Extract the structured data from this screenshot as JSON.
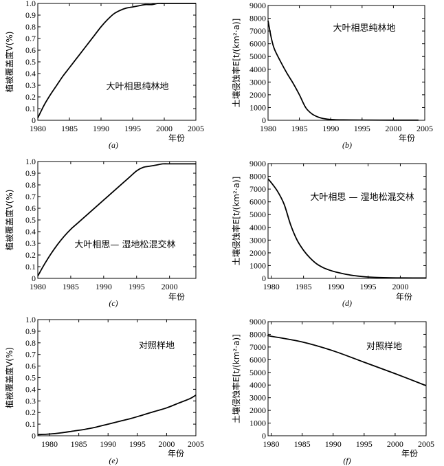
{
  "chart_data": [
    {
      "type": "line",
      "caption": "(a)",
      "annotation": "大叶相思纯林地",
      "ylabel": "植被覆盖度V(%)",
      "xlabel": "年份",
      "xlim": [
        1980,
        2005
      ],
      "ylim": [
        0,
        1
      ],
      "xticks": [
        "1980",
        "1985",
        "1990",
        "1995",
        "2000",
        "2005"
      ],
      "yticks": [
        "0",
        "0.1",
        "0.2",
        "0.3",
        "0.4",
        "0.5",
        "0.6",
        "0.7",
        "0.8",
        "0.9",
        "1.0"
      ],
      "series": [
        {
          "x": [
            1980,
            1981,
            1982,
            1983,
            1984,
            1985,
            1986,
            1987,
            1988,
            1989,
            1990,
            1991,
            1992,
            1993,
            1994,
            1995,
            1996,
            1997,
            1998,
            1999,
            2000,
            2001,
            2002,
            2003,
            2004,
            2005
          ],
          "y": [
            0.02,
            0.13,
            0.22,
            0.3,
            0.38,
            0.45,
            0.52,
            0.59,
            0.66,
            0.73,
            0.8,
            0.86,
            0.91,
            0.94,
            0.96,
            0.97,
            0.98,
            0.99,
            0.99,
            1.0,
            1.0,
            1.0,
            1.0,
            1.0,
            1.0,
            1.0
          ]
        }
      ]
    },
    {
      "type": "line",
      "caption": "(b)",
      "annotation": "大叶相思纯林地",
      "ylabel": "土壤侵蚀率E[t/(km²·a)]",
      "xlabel": "年份",
      "xlim": [
        1980,
        2005
      ],
      "ylim": [
        0,
        9000
      ],
      "xticks": [
        "1980",
        "1985",
        "1990",
        "1995",
        "2000",
        "2005"
      ],
      "yticks": [
        "0",
        "1000",
        "2000",
        "3000",
        "4000",
        "5000",
        "6000",
        "7000",
        "8000",
        "9000"
      ],
      "series": [
        {
          "x": [
            1980,
            1980.5,
            1981,
            1982,
            1983,
            1984,
            1985,
            1986,
            1987,
            1988,
            1989,
            1990,
            1992,
            1995,
            2000,
            2004
          ],
          "y": [
            7800,
            6500,
            5600,
            4600,
            3700,
            2900,
            2000,
            1000,
            500,
            250,
            120,
            60,
            30,
            20,
            10,
            10
          ]
        }
      ]
    },
    {
      "type": "line",
      "caption": "(c)",
      "annotation": "大叶相思— 湿地松混交林",
      "ylabel": "植被覆盖度V(%)",
      "xlabel": "年份",
      "xlim": [
        1980,
        2004
      ],
      "ylim": [
        0,
        1
      ],
      "xticks": [
        "1980",
        "1985",
        "1990",
        "1995",
        "2000"
      ],
      "yticks": [
        "0",
        "0.1",
        "0.2",
        "0.3",
        "0.4",
        "0.5",
        "0.6",
        "0.7",
        "0.8",
        "0.9",
        "1.0"
      ],
      "series": [
        {
          "x": [
            1980,
            1981,
            1982,
            1983,
            1984,
            1985,
            1986,
            1987,
            1988,
            1989,
            1990,
            1991,
            1992,
            1993,
            1994,
            1995,
            1996,
            1997,
            1998,
            1999,
            2000,
            2001,
            2002,
            2003,
            2004
          ],
          "y": [
            0.02,
            0.12,
            0.21,
            0.29,
            0.36,
            0.42,
            0.47,
            0.52,
            0.57,
            0.62,
            0.67,
            0.72,
            0.77,
            0.82,
            0.87,
            0.92,
            0.95,
            0.96,
            0.97,
            0.98,
            0.98,
            0.98,
            0.98,
            0.98,
            0.98
          ]
        }
      ]
    },
    {
      "type": "line",
      "caption": "(d)",
      "annotation": "大叶相思 — 湿地松混交林",
      "ylabel": "土壤侵蚀率E[t/(km²·a)]",
      "xlabel": "年份",
      "xlim": [
        1979.5,
        2004
      ],
      "ylim": [
        0,
        9000
      ],
      "xticks": [
        "1980",
        "1985",
        "1990",
        "1995",
        "2000"
      ],
      "yticks": [
        "0",
        "1000",
        "2000",
        "3000",
        "4000",
        "5000",
        "6000",
        "7000",
        "8000",
        "9000"
      ],
      "series": [
        {
          "x": [
            1979.5,
            1980,
            1981,
            1982,
            1983,
            1984,
            1985,
            1986,
            1987,
            1988,
            1989,
            1990,
            1992,
            1994,
            1996,
            1998,
            2000,
            2002,
            2004
          ],
          "y": [
            7800,
            7500,
            6800,
            5800,
            4200,
            3000,
            2200,
            1600,
            1150,
            850,
            650,
            500,
            280,
            150,
            80,
            50,
            40,
            30,
            30
          ]
        }
      ]
    },
    {
      "type": "line",
      "caption": "(e)",
      "annotation": "对照样地",
      "ylabel": "植被覆盖度V(%)",
      "xlabel": "年份",
      "xlim": [
        1978,
        2005
      ],
      "ylim": [
        0,
        1
      ],
      "xticks": [
        "1980",
        "1985",
        "1990",
        "1995",
        "2000",
        "2005"
      ],
      "yticks": [
        "0",
        "0.1",
        "0.2",
        "0.3",
        "0.4",
        "0.5",
        "0.6",
        "0.7",
        "0.8",
        "0.9",
        "1.0"
      ],
      "series": [
        {
          "x": [
            1978,
            1980,
            1982,
            1984,
            1986,
            1988,
            1990,
            1992,
            1994,
            1996,
            1998,
            2000,
            2002,
            2004,
            2005
          ],
          "y": [
            0.01,
            0.015,
            0.025,
            0.04,
            0.055,
            0.075,
            0.1,
            0.125,
            0.15,
            0.18,
            0.21,
            0.24,
            0.28,
            0.32,
            0.35
          ]
        }
      ]
    },
    {
      "type": "line",
      "caption": "(f)",
      "annotation": "对照样地",
      "ylabel": "土壤侵蚀率E[t/(km²·a)]",
      "xlabel": "年份",
      "xlim": [
        1979.5,
        2005
      ],
      "ylim": [
        0,
        9000
      ],
      "xticks": [
        "1980",
        "1985",
        "1990",
        "1995",
        "2000",
        "2005"
      ],
      "yticks": [
        "0",
        "1000",
        "2000",
        "3000",
        "4000",
        "5000",
        "6000",
        "7000",
        "8000",
        "9000"
      ],
      "series": [
        {
          "x": [
            1979.5,
            1980,
            1985,
            1990,
            1995,
            2000,
            2005
          ],
          "y": [
            7900,
            7850,
            7400,
            6700,
            5800,
            4900,
            3950
          ]
        }
      ]
    }
  ]
}
